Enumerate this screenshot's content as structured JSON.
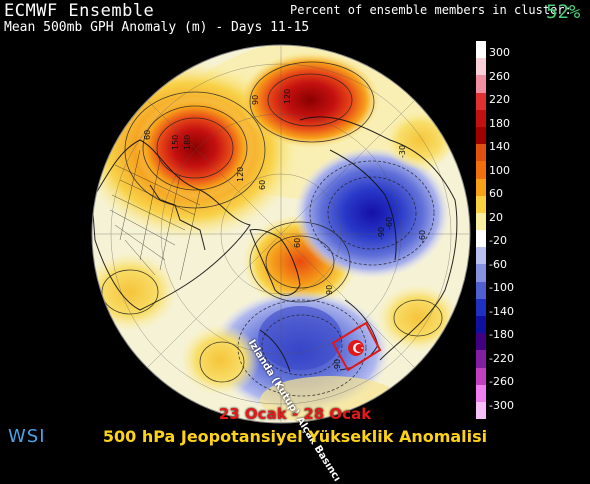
{
  "header": {
    "title": "ECMWF Ensemble",
    "subtitle": "Mean 500mb GPH Anomaly (m) - Days 11-15",
    "cluster_label": "Percent of ensemble members in cluster:",
    "cluster_value": "52%"
  },
  "scale": {
    "labels": [
      "300",
      "260",
      "220",
      "180",
      "140",
      "100",
      "60",
      "20",
      "-20",
      "-60",
      "-100",
      "-140",
      "-180",
      "-220",
      "-260",
      "-300"
    ],
    "colors": [
      "#ffffff",
      "#f9d0d8",
      "#f090a0",
      "#e03030",
      "#c01010",
      "#a00000",
      "#e05010",
      "#f07010",
      "#f8a018",
      "#f8d040",
      "#f8f0a0",
      "#ffffff",
      "#b8c0f0",
      "#8890e0",
      "#5060d0",
      "#2030c0",
      "#1010a0",
      "#400080",
      "#8020a0",
      "#c040c0",
      "#f080f0",
      "#f8c0f8"
    ]
  },
  "map": {
    "contour_labels": [
      "120",
      "150",
      "180",
      "60",
      "90",
      "60",
      "120",
      "-90",
      "-60",
      "60",
      "90",
      "-60",
      "-30",
      "-90"
    ],
    "annotation": "Izlanda (Kutup) Alçak Basıncı"
  },
  "footer": {
    "brand": "WSI",
    "date_range": "23 Ocak - 28 Ocak",
    "caption": "500 hPa Jeopotansiyel Yükseklik Anomalisi"
  }
}
